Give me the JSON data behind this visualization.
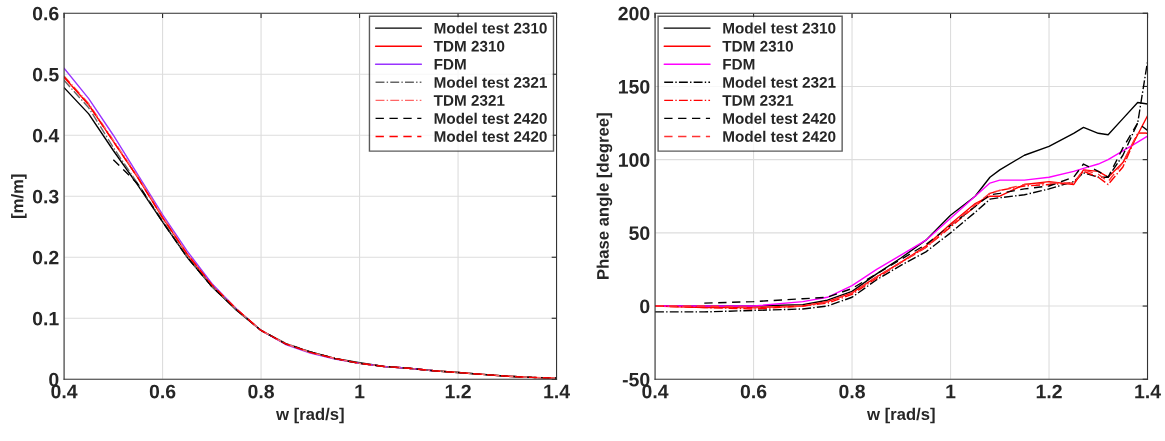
{
  "chart_data": [
    {
      "type": "line",
      "xlabel": "w [rad/s]",
      "ylabel": "[m/m]",
      "xlim": [
        0.4,
        1.4
      ],
      "ylim": [
        0,
        0.6
      ],
      "xticks": [
        0.4,
        0.6,
        0.8,
        {
          "value": 1,
          "label": "1"
        },
        1.2,
        1.4
      ],
      "yticks": [
        {
          "value": 0,
          "label": "0"
        },
        0.1,
        0.2,
        0.3,
        0.4,
        0.5,
        0.6
      ],
      "grid": true,
      "legend": "top right",
      "x": [
        0.4,
        0.45,
        0.5,
        0.55,
        0.6,
        0.65,
        0.7,
        0.75,
        0.8,
        0.85,
        0.9,
        0.95,
        1.0,
        1.05,
        1.1,
        1.15,
        1.2,
        1.25,
        1.3,
        1.35,
        1.4
      ],
      "series": [
        {
          "name": "Model test 2310",
          "color": "#000000",
          "line_style": "solid",
          "values": [
            0.478,
            0.435,
            0.375,
            0.318,
            0.258,
            0.2,
            0.152,
            0.113,
            0.08,
            0.058,
            0.045,
            0.034,
            0.027,
            0.021,
            0.018,
            0.014,
            0.011,
            0.008,
            0.005,
            0.003,
            0.002
          ]
        },
        {
          "name": "TDM 2310",
          "color": "#ff0000",
          "line_style": "solid",
          "values": [
            0.495,
            0.45,
            0.39,
            0.33,
            0.265,
            0.205,
            0.155,
            0.115,
            0.08,
            0.058,
            0.044,
            0.034,
            0.026,
            0.021,
            0.018,
            0.014,
            0.011,
            0.008,
            0.005,
            0.003,
            0.002
          ]
        },
        {
          "name": "FDM",
          "color": "#9933ff",
          "line_style": "solid",
          "values": [
            0.51,
            0.46,
            0.4,
            0.335,
            0.27,
            0.21,
            0.157,
            0.115,
            0.08,
            0.057,
            0.043,
            0.033,
            0.026,
            0.021,
            0.018,
            0.014,
            null,
            null,
            null,
            null,
            null
          ]
        },
        {
          "name": "Model test 2321",
          "color": "#666666",
          "line_style": "dashdot",
          "values": [
            0.49,
            0.445,
            0.38,
            0.32,
            0.26,
            0.2,
            0.152,
            0.114,
            0.08,
            0.059,
            0.045,
            0.034,
            0.026,
            0.021,
            0.018,
            0.014,
            0.011,
            0.008,
            0.005,
            0.003,
            0.002
          ]
        },
        {
          "name": "TDM 2321",
          "color": "#ff6666",
          "line_style": "dashdot",
          "values": [
            0.497,
            0.452,
            0.392,
            0.332,
            0.267,
            0.206,
            0.155,
            0.115,
            0.08,
            0.058,
            0.044,
            0.034,
            0.026,
            0.021,
            0.018,
            0.014,
            0.011,
            0.008,
            0.005,
            0.003,
            0.002
          ]
        },
        {
          "name": "Model test 2420",
          "color": "#000000",
          "line_style": "dashed",
          "values": [
            null,
            null,
            0.36,
            0.32,
            0.258,
            0.2,
            0.152,
            0.114,
            0.08,
            0.058,
            0.045,
            0.034,
            0.026,
            0.021,
            0.018,
            0.014,
            0.011,
            0.008,
            0.005,
            0.003,
            0.002
          ]
        },
        {
          "name": "Model test 2420",
          "color": "#ff0000",
          "line_style": "dashed",
          "values": [
            0.496,
            0.45,
            0.39,
            0.33,
            0.265,
            0.205,
            0.155,
            0.115,
            0.08,
            0.058,
            0.044,
            0.034,
            0.026,
            0.021,
            0.018,
            0.014,
            0.011,
            0.008,
            0.005,
            0.003,
            0.002
          ]
        }
      ]
    },
    {
      "type": "line",
      "xlabel": "w [rad/s]",
      "ylabel": "Phase angle [degree]",
      "xlim": [
        0.4,
        1.4
      ],
      "ylim": [
        -50,
        200
      ],
      "xticks": [
        0.4,
        0.6,
        0.8,
        {
          "value": 1,
          "label": "1"
        },
        1.2,
        1.4
      ],
      "yticks": [
        -50,
        0,
        50,
        100,
        150,
        200
      ],
      "grid": true,
      "legend": "top left",
      "x": [
        0.4,
        0.5,
        0.6,
        0.7,
        0.75,
        0.8,
        0.85,
        0.9,
        0.95,
        1.0,
        1.05,
        1.08,
        1.1,
        1.15,
        1.2,
        1.25,
        1.27,
        1.3,
        1.32,
        1.35,
        1.38,
        1.4
      ],
      "series": [
        {
          "name": "Model test 2310",
          "color": "#000000",
          "line_style": "solid",
          "values": [
            0,
            0,
            0,
            1,
            4,
            10,
            22,
            33,
            45,
            62,
            75,
            88,
            93,
            103,
            109,
            118,
            122,
            118,
            117,
            128,
            139,
            138
          ]
        },
        {
          "name": "TDM 2310",
          "color": "#ff0000",
          "line_style": "solid",
          "values": [
            0,
            -1,
            -1,
            0,
            3,
            9,
            20,
            30,
            41,
            56,
            70,
            75,
            75,
            83,
            85,
            83,
            93,
            92,
            88,
            98,
            117,
            130
          ]
        },
        {
          "name": "FDM",
          "color": "#ff00ff",
          "line_style": "solid",
          "values": [
            0,
            0,
            0,
            3,
            6,
            14,
            25,
            35,
            45,
            60,
            75,
            84,
            86,
            86,
            88,
            92,
            94,
            97,
            100,
            106,
            112,
            116
          ]
        },
        {
          "name": "Model test 2321",
          "color": "#000000",
          "line_style": "dashdot",
          "values": [
            -4,
            -4,
            -3,
            -2,
            0,
            6,
            18,
            28,
            37,
            50,
            64,
            73,
            74,
            76,
            80,
            85,
            91,
            88,
            88,
            103,
            125,
            167
          ]
        },
        {
          "name": "TDM 2321",
          "color": "#ff0000",
          "line_style": "dashdot",
          "values": [
            0,
            -1,
            -2,
            0,
            2,
            8,
            19,
            30,
            40,
            54,
            68,
            77,
            79,
            82,
            83,
            84,
            92,
            88,
            83,
            95,
            118,
            118
          ]
        },
        {
          "name": "Model test 2420",
          "color": "#000000",
          "line_style": "dashed",
          "values": [
            null,
            2,
            3,
            5,
            6,
            12,
            22,
            32,
            42,
            55,
            68,
            76,
            77,
            80,
            82,
            88,
            97,
            92,
            88,
            108,
            125,
            120
          ]
        },
        {
          "name": "Model test 2420",
          "color": "#ff3333",
          "line_style": "dashed",
          "values": [
            0,
            0,
            -1,
            0,
            3,
            9,
            20,
            30,
            40,
            55,
            69,
            77,
            79,
            83,
            84,
            84,
            93,
            90,
            85,
            98,
            118,
            118
          ]
        }
      ]
    }
  ]
}
